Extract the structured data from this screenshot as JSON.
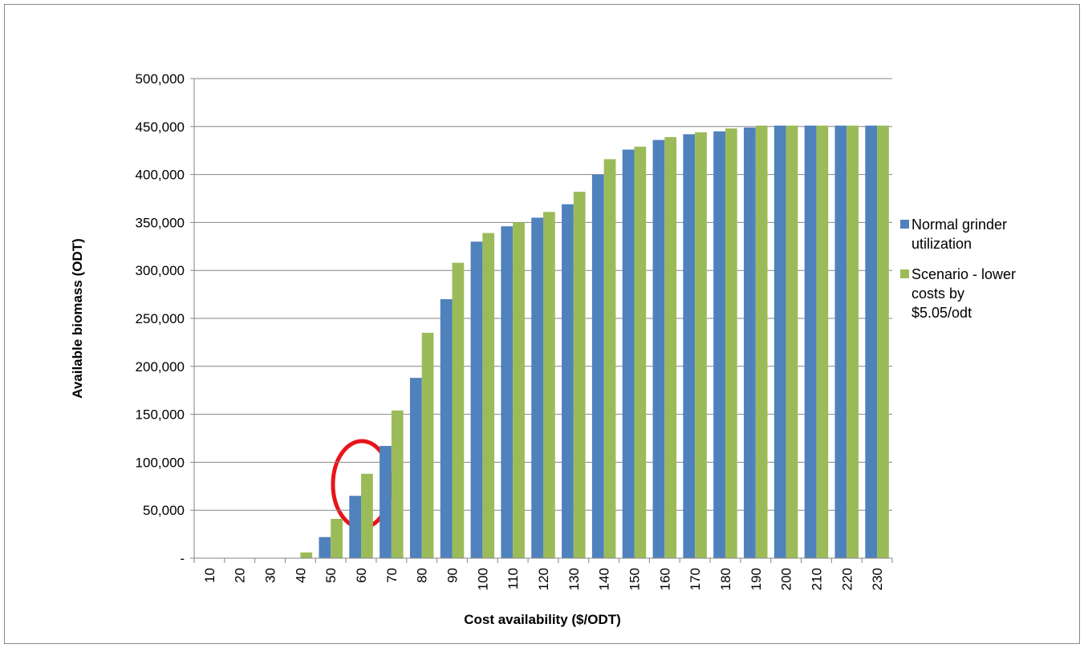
{
  "chart_data": {
    "type": "bar",
    "x_label": "Cost availability ($/ODT)",
    "y_label": "Available biomass (ODT)",
    "categories": [
      "10",
      "20",
      "30",
      "40",
      "50",
      "60",
      "70",
      "80",
      "90",
      "100",
      "110",
      "120",
      "130",
      "140",
      "150",
      "160",
      "170",
      "180",
      "190",
      "200",
      "210",
      "220",
      "230"
    ],
    "series": [
      {
        "name": "Normal grinder utilization",
        "color": "#4f81bd",
        "values": [
          0,
          0,
          0,
          0,
          22000,
          65000,
          117000,
          188000,
          270000,
          330000,
          346000,
          355000,
          369000,
          400000,
          426000,
          436000,
          442000,
          445000,
          449000,
          451000,
          451000,
          451000,
          451000
        ]
      },
      {
        "name": "Scenario - lower costs by $5.05/odt",
        "color": "#9bbb59",
        "values": [
          0,
          0,
          0,
          6000,
          41000,
          88000,
          154000,
          235000,
          308000,
          339000,
          350000,
          361000,
          382000,
          416000,
          429000,
          439000,
          444000,
          448000,
          451000,
          451000,
          451000,
          451000,
          451000
        ]
      }
    ],
    "ylim": [
      0,
      500000
    ],
    "yticks": [
      {
        "value": 0,
        "label": "-"
      },
      {
        "value": 50000,
        "label": "50,000"
      },
      {
        "value": 100000,
        "label": "100,000"
      },
      {
        "value": 150000,
        "label": "150,000"
      },
      {
        "value": 200000,
        "label": "200,000"
      },
      {
        "value": 250000,
        "label": "250,000"
      },
      {
        "value": 300000,
        "label": "300,000"
      },
      {
        "value": 350000,
        "label": "350,000"
      },
      {
        "value": 400000,
        "label": "400,000"
      },
      {
        "value": 450000,
        "label": "450,000"
      },
      {
        "value": 500000,
        "label": "500,000"
      }
    ],
    "grid": true,
    "legend": "right"
  }
}
